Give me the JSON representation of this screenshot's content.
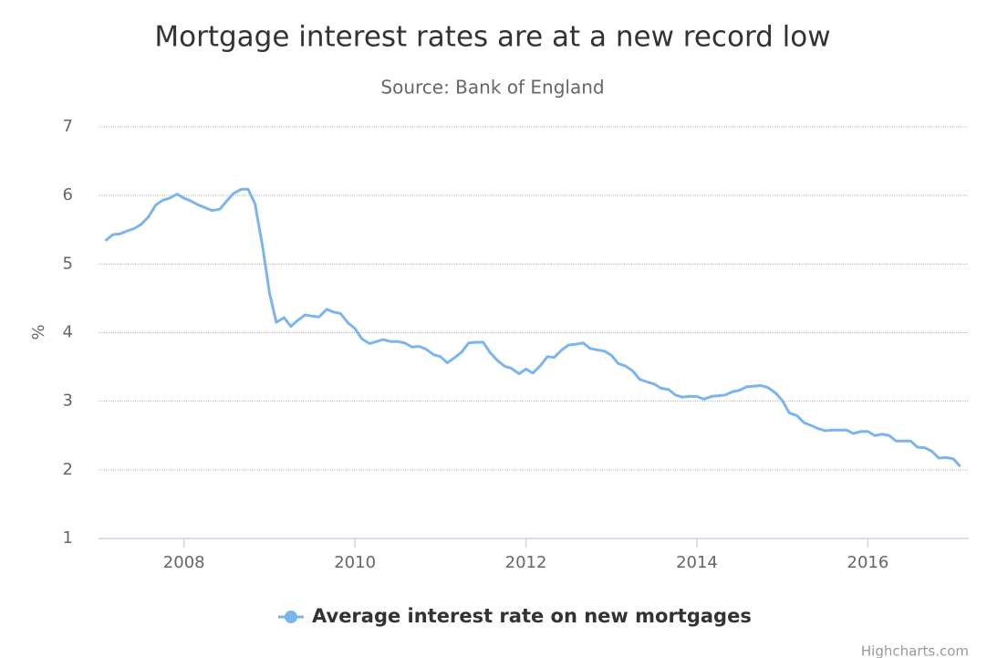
{
  "chart_data": {
    "type": "line",
    "title": "Mortgage interest rates are at a new record low",
    "subtitle": "Source: Bank of England",
    "y_label": "%",
    "credits": "Highcharts.com",
    "x": [
      2007.08,
      2007.17,
      2007.25,
      2007.33,
      2007.42,
      2007.5,
      2007.58,
      2007.67,
      2007.75,
      2007.83,
      2007.92,
      2008,
      2008.08,
      2008.17,
      2008.25,
      2008.33,
      2008.42,
      2008.5,
      2008.58,
      2008.67,
      2008.75,
      2008.83,
      2008.92,
      2009,
      2009.08,
      2009.17,
      2009.25,
      2009.33,
      2009.42,
      2009.5,
      2009.58,
      2009.67,
      2009.75,
      2009.83,
      2009.92,
      2010,
      2010.08,
      2010.17,
      2010.25,
      2010.33,
      2010.42,
      2010.5,
      2010.58,
      2010.67,
      2010.75,
      2010.83,
      2010.92,
      2011,
      2011.08,
      2011.17,
      2011.25,
      2011.33,
      2011.42,
      2011.5,
      2011.58,
      2011.67,
      2011.75,
      2011.83,
      2011.92,
      2012,
      2012.08,
      2012.17,
      2012.25,
      2012.33,
      2012.42,
      2012.5,
      2012.58,
      2012.67,
      2012.75,
      2012.83,
      2012.92,
      2013,
      2013.08,
      2013.17,
      2013.25,
      2013.33,
      2013.42,
      2013.5,
      2013.58,
      2013.67,
      2013.75,
      2013.83,
      2013.92,
      2014,
      2014.08,
      2014.17,
      2014.25,
      2014.33,
      2014.42,
      2014.5,
      2014.58,
      2014.67,
      2014.75,
      2014.83,
      2014.92,
      2015,
      2015.08,
      2015.17,
      2015.25,
      2015.33,
      2015.42,
      2015.5,
      2015.58,
      2015.67,
      2015.75,
      2015.83,
      2015.92,
      2016,
      2016.08,
      2016.17,
      2016.25,
      2016.33,
      2016.42,
      2016.5,
      2016.58,
      2016.67,
      2016.75,
      2016.83,
      2016.92,
      2017,
      2017.08
    ],
    "series": [
      {
        "name": "Average interest rate on new mortgages",
        "color": "#7cb5ec",
        "values": [
          5.34,
          5.43,
          5.44,
          5.48,
          5.52,
          5.58,
          5.68,
          5.86,
          5.93,
          5.96,
          6.02,
          5.96,
          5.92,
          5.86,
          5.82,
          5.78,
          5.8,
          5.92,
          6.03,
          6.09,
          6.09,
          5.88,
          5.25,
          4.58,
          4.15,
          4.22,
          4.09,
          4.18,
          4.26,
          4.24,
          4.23,
          4.34,
          4.3,
          4.28,
          4.14,
          4.06,
          3.91,
          3.84,
          3.87,
          3.9,
          3.87,
          3.87,
          3.85,
          3.79,
          3.8,
          3.76,
          3.68,
          3.65,
          3.56,
          3.64,
          3.72,
          3.85,
          3.86,
          3.86,
          3.71,
          3.59,
          3.51,
          3.48,
          3.4,
          3.47,
          3.41,
          3.52,
          3.65,
          3.64,
          3.75,
          3.82,
          3.83,
          3.85,
          3.77,
          3.75,
          3.73,
          3.67,
          3.55,
          3.51,
          3.44,
          3.32,
          3.28,
          3.25,
          3.19,
          3.17,
          3.09,
          3.06,
          3.07,
          3.07,
          3.03,
          3.07,
          3.08,
          3.09,
          3.14,
          3.16,
          3.21,
          3.22,
          3.23,
          3.2,
          3.12,
          3.01,
          2.83,
          2.79,
          2.69,
          2.65,
          2.6,
          2.57,
          2.58,
          2.58,
          2.58,
          2.53,
          2.56,
          2.56,
          2.5,
          2.52,
          2.5,
          2.42,
          2.42,
          2.42,
          2.33,
          2.32,
          2.27,
          2.17,
          2.18,
          2.16,
          2.05
        ]
      }
    ],
    "xlim": [
      2007,
      2017.18
    ],
    "xticks": [
      2008,
      2010,
      2012,
      2014,
      2016
    ],
    "ylim": [
      1,
      7
    ],
    "yticks": [
      1,
      2,
      3,
      4,
      5,
      6,
      7
    ],
    "grid": true
  }
}
